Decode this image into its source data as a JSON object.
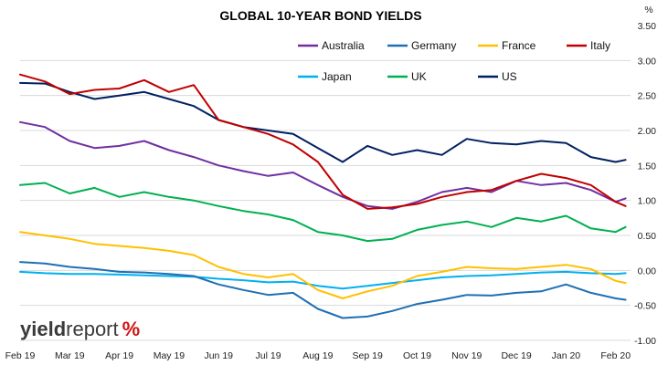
{
  "chart_data": {
    "type": "line",
    "title": "GLOBAL 10-YEAR BOND YIELDS",
    "y_unit": "%",
    "ylim": [
      -1.0,
      3.5
    ],
    "y_ticks": [
      "3.50",
      "3.00",
      "2.50",
      "2.00",
      "1.50",
      "1.00",
      "0.50",
      "0.00",
      "-0.50",
      "-1.00"
    ],
    "y_tick_values": [
      3.5,
      3.0,
      2.5,
      2.0,
      1.5,
      1.0,
      0.5,
      0.0,
      -0.5,
      -1.0
    ],
    "x_ticks": [
      "Feb 19",
      "Mar 19",
      "Apr 19",
      "May 19",
      "Jun 19",
      "Jul 19",
      "Aug 19",
      "Sep 19",
      "Oct 19",
      "Nov 19",
      "Dec 19",
      "Jan 20",
      "Feb 20"
    ],
    "x_tick_positions": [
      0,
      1,
      2,
      3,
      4,
      5,
      6,
      7,
      8,
      9,
      10,
      11,
      12
    ],
    "x_range": [
      0,
      12.3
    ],
    "grid": "horizontal",
    "legend_placement": "top-right",
    "x_months": [
      0,
      0.5,
      1,
      1.5,
      2,
      2.5,
      3,
      3.5,
      4,
      4.5,
      5,
      5.5,
      6,
      6.5,
      7,
      7.5,
      8,
      8.5,
      9,
      9.5,
      10,
      10.5,
      11,
      11.5,
      12,
      12.2
    ],
    "series": [
      {
        "name": "Australia",
        "color": "#7030a0",
        "values": [
          2.12,
          2.05,
          1.85,
          1.75,
          1.78,
          1.85,
          1.72,
          1.62,
          1.5,
          1.42,
          1.35,
          1.4,
          1.22,
          1.05,
          0.92,
          0.88,
          0.98,
          1.12,
          1.18,
          1.12,
          1.28,
          1.22,
          1.25,
          1.15,
          0.98,
          1.03
        ]
      },
      {
        "name": "Germany",
        "color": "#1f6fb4",
        "values": [
          0.12,
          0.1,
          0.05,
          0.02,
          -0.02,
          -0.03,
          -0.05,
          -0.08,
          -0.2,
          -0.28,
          -0.35,
          -0.32,
          -0.55,
          -0.68,
          -0.66,
          -0.58,
          -0.48,
          -0.42,
          -0.35,
          -0.36,
          -0.32,
          -0.3,
          -0.2,
          -0.32,
          -0.4,
          -0.42
        ]
      },
      {
        "name": "France",
        "color": "#ffc000",
        "values": [
          0.55,
          0.5,
          0.45,
          0.38,
          0.35,
          0.32,
          0.28,
          0.22,
          0.05,
          -0.05,
          -0.1,
          -0.05,
          -0.28,
          -0.4,
          -0.3,
          -0.22,
          -0.08,
          -0.02,
          0.05,
          0.03,
          0.02,
          0.05,
          0.08,
          0.02,
          -0.15,
          -0.18
        ]
      },
      {
        "name": "Italy",
        "color": "#c00000",
        "values": [
          2.8,
          2.7,
          2.52,
          2.58,
          2.6,
          2.72,
          2.55,
          2.65,
          2.15,
          2.05,
          1.95,
          1.8,
          1.55,
          1.08,
          0.88,
          0.9,
          0.95,
          1.05,
          1.12,
          1.15,
          1.28,
          1.38,
          1.32,
          1.22,
          0.98,
          0.92
        ]
      },
      {
        "name": "Japan",
        "color": "#00b0f0",
        "values": [
          -0.02,
          -0.04,
          -0.05,
          -0.05,
          -0.06,
          -0.07,
          -0.08,
          -0.09,
          -0.12,
          -0.14,
          -0.17,
          -0.16,
          -0.22,
          -0.26,
          -0.22,
          -0.18,
          -0.14,
          -0.1,
          -0.08,
          -0.07,
          -0.05,
          -0.03,
          -0.02,
          -0.04,
          -0.05,
          -0.04
        ]
      },
      {
        "name": "UK",
        "color": "#00b050",
        "values": [
          1.22,
          1.25,
          1.1,
          1.18,
          1.05,
          1.12,
          1.05,
          1.0,
          0.92,
          0.85,
          0.8,
          0.72,
          0.55,
          0.5,
          0.42,
          0.45,
          0.58,
          0.65,
          0.7,
          0.62,
          0.75,
          0.7,
          0.78,
          0.6,
          0.55,
          0.62
        ]
      },
      {
        "name": "US",
        "color": "#002060",
        "values": [
          2.68,
          2.67,
          2.55,
          2.45,
          2.5,
          2.55,
          2.45,
          2.35,
          2.15,
          2.05,
          2.0,
          1.95,
          1.75,
          1.55,
          1.78,
          1.65,
          1.72,
          1.65,
          1.88,
          1.82,
          1.8,
          1.85,
          1.82,
          1.62,
          1.55,
          1.58
        ]
      }
    ]
  },
  "logo": {
    "part1": "yield",
    "part2": "report",
    "part3": "%"
  }
}
